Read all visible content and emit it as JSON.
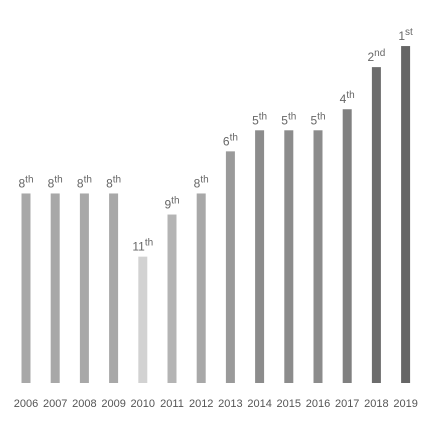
{
  "chart_data": {
    "type": "bar",
    "categories": [
      "2006",
      "2007",
      "2008",
      "2009",
      "2010",
      "2011",
      "2012",
      "2013",
      "2014",
      "2015",
      "2016",
      "2017",
      "2018",
      "2019"
    ],
    "values": [
      8,
      8,
      8,
      8,
      11,
      9,
      8,
      6,
      5,
      5,
      5,
      4,
      2,
      1
    ],
    "value_labels": [
      "8th",
      "8th",
      "8th",
      "8th",
      "11th",
      "9th",
      "8th",
      "6th",
      "5th",
      "5th",
      "5th",
      "4th",
      "2nd",
      "1st"
    ],
    "colors": [
      "#a8a8a8",
      "#a8a8a8",
      "#a8a8a8",
      "#a8a8a8",
      "#d2d2d2",
      "#b4b4b4",
      "#a8a8a8",
      "#9a9a9a",
      "#8c8c8c",
      "#8c8c8c",
      "#8c8c8c",
      "#808080",
      "#6c6c6c",
      "#666666"
    ],
    "ylim": [
      17,
      0
    ]
  }
}
